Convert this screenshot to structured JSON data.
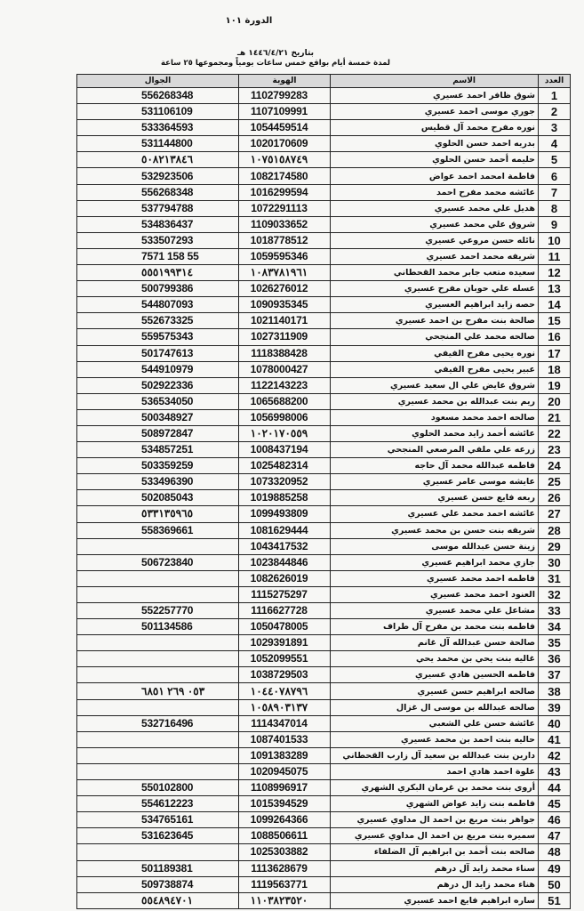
{
  "header": {
    "title": "الدورة ١٠١",
    "date": "بتاريخ ١٤٤٦/٤/٢١ هـ",
    "subtitle": "لمدة خمسة أيام بواقع خمس ساعات يومياً ومجموعها ٢٥ ساعة"
  },
  "table": {
    "columns": {
      "num": "العدد",
      "name": "الاسم",
      "id": "الهوية",
      "mobile": "الجوال"
    },
    "rows": [
      {
        "num": "1",
        "name": "شوق ظافر احمد عسيري",
        "id": "1102799283",
        "mobile": "556268348"
      },
      {
        "num": "2",
        "name": "جوري موسى احمد عسيري",
        "id": "1107109991",
        "mobile": "531106109"
      },
      {
        "num": "3",
        "name": "نوره مفرح محمد آل قطيس",
        "id": "1054459514",
        "mobile": "533364593"
      },
      {
        "num": "4",
        "name": "بدريه احمد حسن الحلوي",
        "id": "1020170609",
        "mobile": "531144800"
      },
      {
        "num": "5",
        "name": "حليمه أحمد حسن الحلوي",
        "id": "١٠٧٥١٥٨٧٤٩",
        "mobile": "٥٠٨٢١٣٨٤٦"
      },
      {
        "num": "6",
        "name": "فاطمة امحمد احمد عواض",
        "id": "1082174580",
        "mobile": "532923506"
      },
      {
        "num": "7",
        "name": "عائشه محمد مفرح احمد",
        "id": "1016299594",
        "mobile": "556268348"
      },
      {
        "num": "8",
        "name": "هديل علي محمد عسيري",
        "id": "1072291113",
        "mobile": "537794788"
      },
      {
        "num": "9",
        "name": "شروق علي محمد عسيري",
        "id": "1109033652",
        "mobile": "534836437"
      },
      {
        "num": "10",
        "name": "نائله حسن مروعي عسيري",
        "id": "1018778512",
        "mobile": "533507293"
      },
      {
        "num": "11",
        "name": "شريفه محمد احمد عسيري",
        "id": "1059595346",
        "mobile": "55 158 7571"
      },
      {
        "num": "12",
        "name": "سعيده متعب جابر محمد القحطاني",
        "id": "١٠٨٣٧٨١٩٦١",
        "mobile": "٥٥٥١٩٩٣١٤"
      },
      {
        "num": "13",
        "name": "عسله علي حوبان مفرح عسيري",
        "id": "1026276012",
        "mobile": "500799386"
      },
      {
        "num": "14",
        "name": "حصه زايد ابراهيم العسيري",
        "id": "1090935345",
        "mobile": "544807093"
      },
      {
        "num": "15",
        "name": "صالحة بنت مفرح بن احمد عسيري",
        "id": "1021140171",
        "mobile": "552673325"
      },
      {
        "num": "16",
        "name": "صالحه محمد علي المنجحي",
        "id": "1027311909",
        "mobile": "559575343"
      },
      {
        "num": "17",
        "name": "نوره يحيى مفرح الفيفي",
        "id": "1118388428",
        "mobile": "501747613"
      },
      {
        "num": "18",
        "name": "عبير يحيى مفرح الفيفي",
        "id": "1078000427",
        "mobile": "544910979"
      },
      {
        "num": "19",
        "name": "شروق عايض علي ال سعيد عسيري",
        "id": "1122143223",
        "mobile": "502922336"
      },
      {
        "num": "20",
        "name": "ريم بنت عبدالله بن محمد عسيري",
        "id": "1065688200",
        "mobile": "536534050"
      },
      {
        "num": "21",
        "name": "صالحه احمد محمد مسعود",
        "id": "1056998006",
        "mobile": "500348927"
      },
      {
        "num": "22",
        "name": "عائشه أحمد زايد محمد الحلوي",
        "id": "١٠٢٠١٧٠٥٥٩",
        "mobile": "508972847"
      },
      {
        "num": "23",
        "name": "زرعه علي ملفي المرصعي المنجحي",
        "id": "1008437194",
        "mobile": "534857251"
      },
      {
        "num": "24",
        "name": "فاطمه عبدالله محمد آل حاجه",
        "id": "1025482314",
        "mobile": "503359259"
      },
      {
        "num": "25",
        "name": "عايشه موسى عامر عسيري",
        "id": "1073320952",
        "mobile": "533496390"
      },
      {
        "num": "26",
        "name": "ربعه فايع حسن عسيري",
        "id": "1019885258",
        "mobile": "502085043"
      },
      {
        "num": "27",
        "name": "عائشه احمد محمد علي عسيري",
        "id": "1099493809",
        "mobile": "٥٣٣١٣٥٩٦٥"
      },
      {
        "num": "28",
        "name": "شريفه بنت حسن بن محمد عسيري",
        "id": "1081629444",
        "mobile": "558369661"
      },
      {
        "num": "29",
        "name": "زينة حسن عبدالله موسى",
        "id": "1043417532",
        "mobile": ""
      },
      {
        "num": "30",
        "name": "جازي محمد ابراهيم عسيري",
        "id": "1023844846",
        "mobile": "506723840"
      },
      {
        "num": "31",
        "name": "فاطمه احمد محمد عسيري",
        "id": "1082626019",
        "mobile": ""
      },
      {
        "num": "32",
        "name": "العنود احمد محمد عسيري",
        "id": "1115275297",
        "mobile": ""
      },
      {
        "num": "33",
        "name": "مشاعل علي محمد عسيري",
        "id": "1116627728",
        "mobile": "552257770"
      },
      {
        "num": "34",
        "name": "فاطمه بنت محمد بن مفرح آل طراف",
        "id": "1050478005",
        "mobile": "501134586"
      },
      {
        "num": "35",
        "name": "صالحة حسن عبدالله آل غانم",
        "id": "1029391891",
        "mobile": ""
      },
      {
        "num": "36",
        "name": "غاليه بنت يحي بن محمد يحي",
        "id": "1052099551",
        "mobile": ""
      },
      {
        "num": "37",
        "name": "فاطمه الحسين هادي عسيري",
        "id": "1038729503",
        "mobile": ""
      },
      {
        "num": "38",
        "name": "صالحه ابراهيم حسن عسيري",
        "id": "١٠٤٤٠٧٨٧٩٦",
        "mobile": "٠٥٣ ٢٦٩ ٦٨٥١"
      },
      {
        "num": "39",
        "name": "صالحه عبدالله بن موسى ال غزال",
        "id": "١٠٥٨٩٠٣١٣٧",
        "mobile": ""
      },
      {
        "num": "40",
        "name": "عائشة حسن علي الشعبي",
        "id": "1114347014",
        "mobile": "532716496"
      },
      {
        "num": "41",
        "name": "حاليه بنت احمد بن محمد عسيري",
        "id": "1087401533",
        "mobile": ""
      },
      {
        "num": "42",
        "name": "دارين بنت عبدالله بن سعيد آل زارب القحطاني",
        "id": "1091383289",
        "mobile": ""
      },
      {
        "num": "43",
        "name": "علوة احمد هادي احمد",
        "id": "1020945075",
        "mobile": ""
      },
      {
        "num": "44",
        "name": "أروى بنت محمد بن غرمان البكري الشهري",
        "id": "1108996917",
        "mobile": "550102800"
      },
      {
        "num": "45",
        "name": "فاطمه بنت زايد عواض الشهري",
        "id": "1015394529",
        "mobile": "554612223"
      },
      {
        "num": "46",
        "name": "جواهر بنت مريع بن احمد ال مداوي عسيري",
        "id": "1099264366",
        "mobile": "534765161"
      },
      {
        "num": "47",
        "name": "سميره بنت مريع بن احمد ال مداوي عسيري",
        "id": "1088506611",
        "mobile": "531623645"
      },
      {
        "num": "48",
        "name": "صالحه بنت أحمد بن ابراهيم آل الضلفاء",
        "id": "1025303882",
        "mobile": ""
      },
      {
        "num": "49",
        "name": "سناء محمد زايد آل درهم",
        "id": "1113628679",
        "mobile": "501189381"
      },
      {
        "num": "50",
        "name": "هناء محمد زايد ال درهم",
        "id": "1119563771",
        "mobile": "509738874"
      },
      {
        "num": "51",
        "name": "ساره ابراهيم فايع احمد عسيري",
        "id": "١١٠٣٨٢٣٥٢٠",
        "mobile": "٥٥٤٨٩٤٧٠١"
      }
    ]
  }
}
